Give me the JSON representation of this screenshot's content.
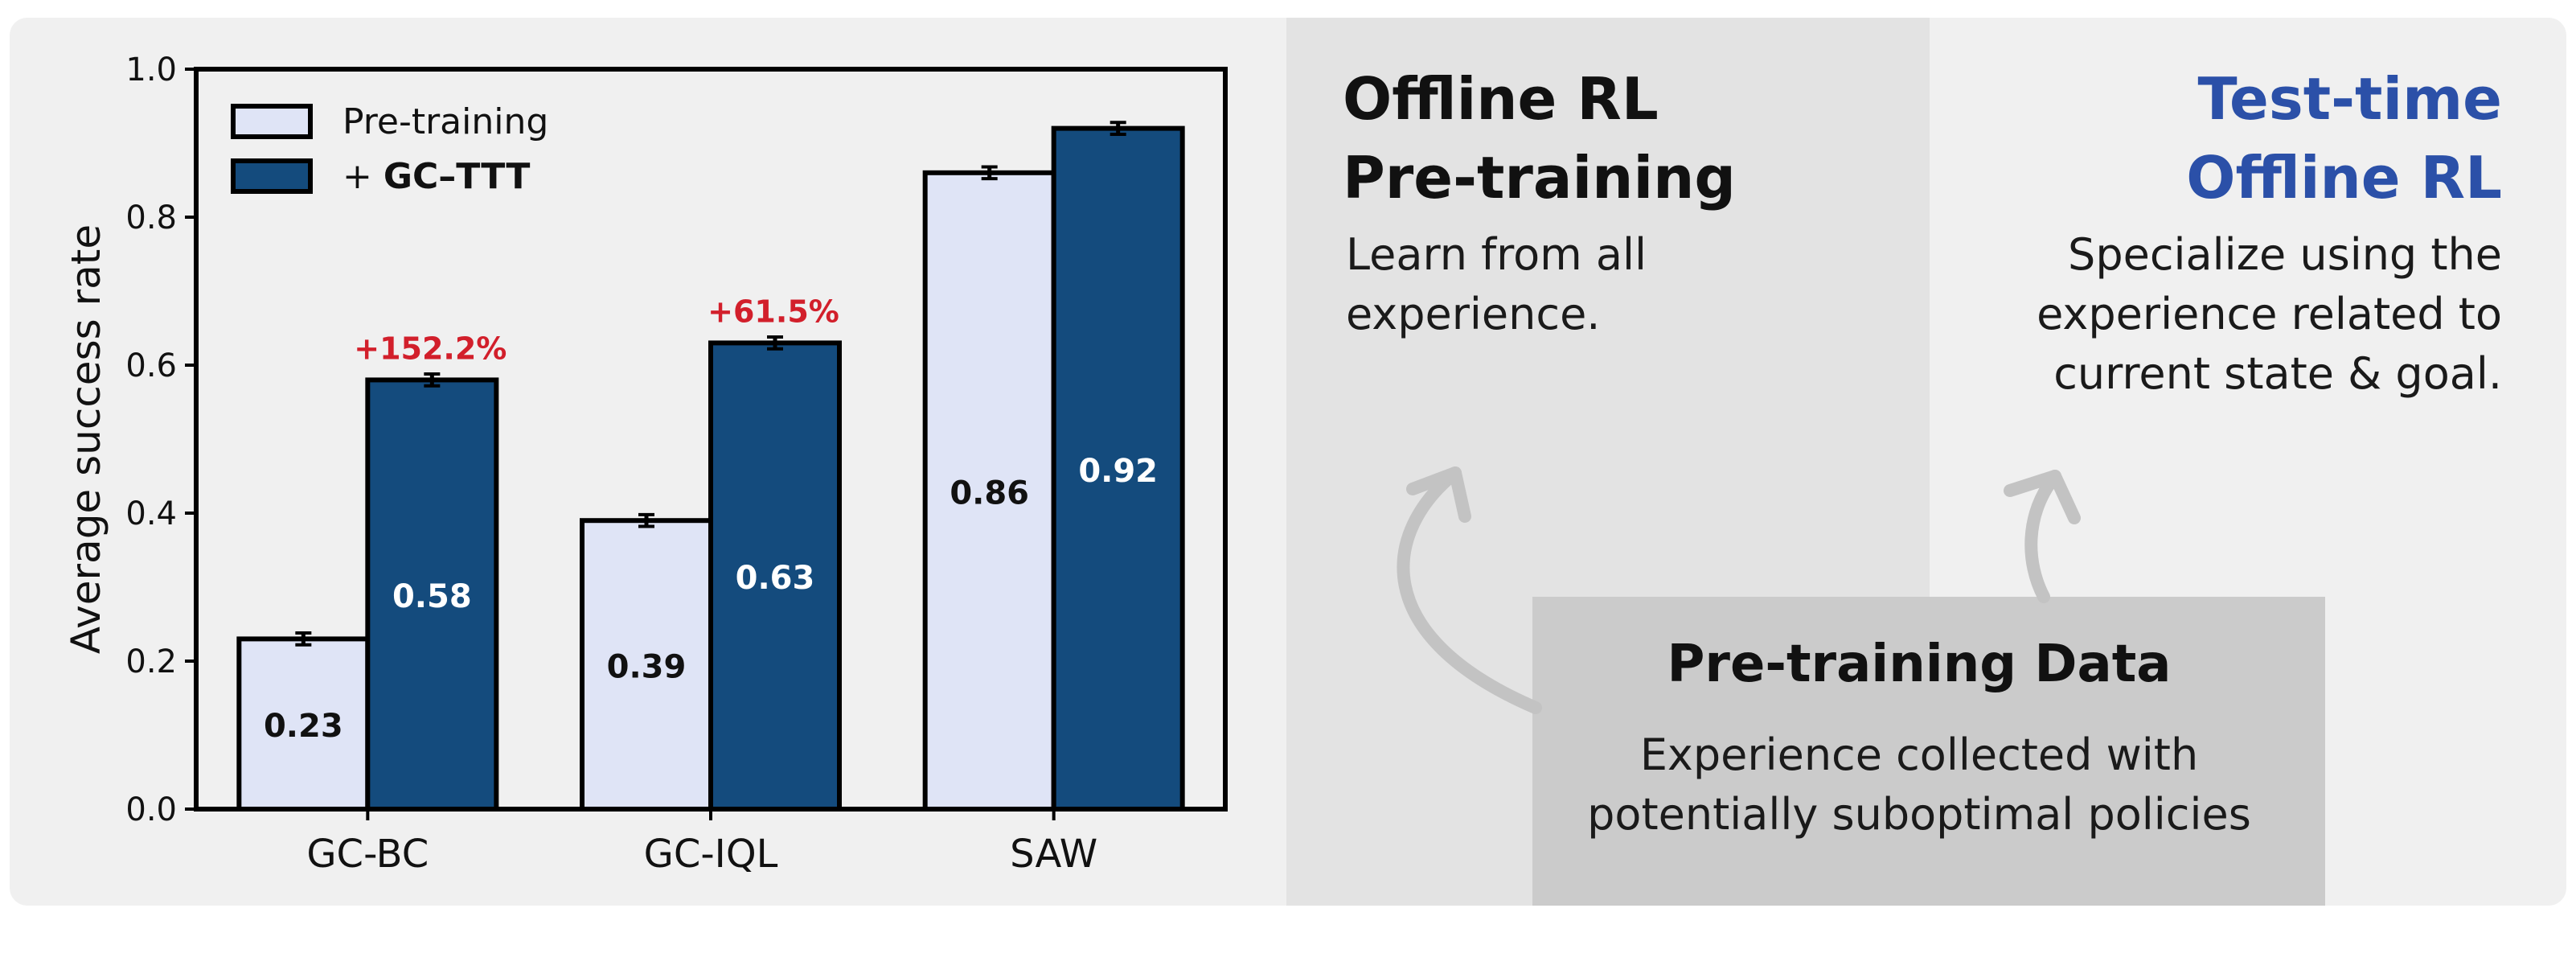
{
  "chart_data": {
    "type": "bar",
    "categories": [
      "GC-BC",
      "GC-IQL",
      "SAW"
    ],
    "series": [
      {
        "name": "Pre-training",
        "values": [
          0.23,
          0.39,
          0.86
        ],
        "color": "#dfe4f6"
      },
      {
        "name": "GC–TTT",
        "legend_prefix": "+ ",
        "values": [
          0.58,
          0.63,
          0.92
        ],
        "color": "#144b7d"
      }
    ],
    "value_labels": {
      "Pre-training": [
        "0.23",
        "0.39",
        "0.86"
      ],
      "GC–TTT": [
        "0.58",
        "0.63",
        "0.92"
      ]
    },
    "improvement_annotations": [
      "+152.2%",
      "+61.5%",
      ""
    ],
    "ylabel": "Average success rate",
    "ylim": [
      0,
      1.0
    ],
    "yticks": [
      "0.0",
      "0.2",
      "0.4",
      "0.6",
      "0.8",
      "1.0"
    ],
    "legend_position": "top-left",
    "annotation_color": "#d21f2b"
  },
  "offline": {
    "title_lines": [
      "Offline RL",
      "Pre-training"
    ],
    "desc_lines": [
      "Learn from all",
      "experience."
    ]
  },
  "ttt": {
    "title_lines": [
      "Test-time",
      "Offline RL"
    ],
    "title_color": "#2b50a8",
    "desc_lines": [
      "Specialize using the",
      "experience related to",
      "current state & goal."
    ]
  },
  "data_box": {
    "title": "Pre-training Data",
    "desc_lines": [
      "Experience collected with",
      "potentially suboptimal policies"
    ]
  },
  "colors": {
    "panel_bg": "#f0f0f0",
    "middle_column_bg": "#e3e3e3",
    "data_box_bg": "#cbcbcb",
    "arrow": "#c3c3c3"
  }
}
